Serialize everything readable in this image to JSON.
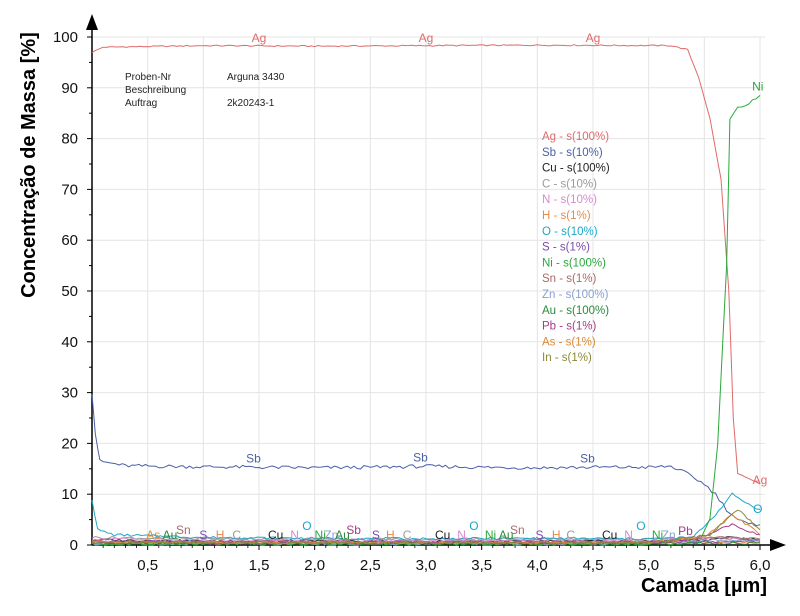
{
  "chart_data": {
    "type": "line",
    "xlabel": "Camada [µm]",
    "ylabel": "Concentração de Massa [%]",
    "xlim": [
      0,
      6.05
    ],
    "ylim": [
      0,
      100
    ],
    "x_ticks": [
      "0,5",
      "1,0",
      "1,5",
      "2,0",
      "2,5",
      "3,0",
      "3,5",
      "4,0",
      "4,5",
      "5,0",
      "5,5",
      "6,0"
    ],
    "y_ticks": [
      "0",
      "10",
      "20",
      "30",
      "40",
      "50",
      "60",
      "70",
      "80",
      "90",
      "100"
    ],
    "legend_position": "center-right",
    "info_box": [
      {
        "label": "Proben-Nr",
        "value": "Arguna 3430"
      },
      {
        "label": "Beschreibung",
        "value": ""
      },
      {
        "label": "Auftrag",
        "value": "2k20243-1"
      }
    ],
    "series": [
      {
        "name": "Ag - s(100%)",
        "color": "#e06a6a",
        "points": [
          [
            0,
            97
          ],
          [
            0.1,
            98
          ],
          [
            1.0,
            98.3
          ],
          [
            2.0,
            98.2
          ],
          [
            3.0,
            98.3
          ],
          [
            4.0,
            98.4
          ],
          [
            5.2,
            98.3
          ],
          [
            5.35,
            97.5
          ],
          [
            5.45,
            92
          ],
          [
            5.55,
            84
          ],
          [
            5.65,
            72
          ],
          [
            5.72,
            50
          ],
          [
            5.76,
            25
          ],
          [
            5.8,
            14
          ],
          [
            5.9,
            13
          ],
          [
            6.0,
            12
          ]
        ]
      },
      {
        "name": "Sb - s(10%)",
        "color": "#4a5fa8",
        "points": [
          [
            0,
            30
          ],
          [
            0.03,
            22
          ],
          [
            0.07,
            16.5
          ],
          [
            0.3,
            15.6
          ],
          [
            0.6,
            15.5
          ],
          [
            1.0,
            15.4
          ],
          [
            1.5,
            15.3
          ],
          [
            2.0,
            15.2
          ],
          [
            2.5,
            15.3
          ],
          [
            3.0,
            15.5
          ],
          [
            3.5,
            15.3
          ],
          [
            4.0,
            15.2
          ],
          [
            4.5,
            15.3
          ],
          [
            5.0,
            15.3
          ],
          [
            5.2,
            15.5
          ],
          [
            5.35,
            14
          ],
          [
            5.5,
            12
          ],
          [
            5.6,
            10
          ],
          [
            5.7,
            7
          ],
          [
            5.8,
            5
          ],
          [
            5.9,
            4
          ],
          [
            6.0,
            4
          ]
        ]
      },
      {
        "name": "Cu - s(100%)",
        "color": "#222222",
        "points": [
          [
            0,
            1
          ],
          [
            1.0,
            0.8
          ],
          [
            2.0,
            0.8
          ],
          [
            3.0,
            0.7
          ],
          [
            4.0,
            0.8
          ],
          [
            5.0,
            0.7
          ],
          [
            5.5,
            0.9
          ],
          [
            5.7,
            1.5
          ],
          [
            6.0,
            1
          ]
        ]
      },
      {
        "name": "C - s(10%)",
        "color": "#9a9a9a",
        "points": [
          [
            0,
            1.5
          ],
          [
            1.0,
            1.2
          ],
          [
            2.0,
            1.2
          ],
          [
            3.0,
            1.1
          ],
          [
            4.0,
            1.2
          ],
          [
            5.0,
            1.1
          ],
          [
            5.5,
            1.4
          ],
          [
            6.0,
            1.2
          ]
        ]
      },
      {
        "name": "N - s(10%)",
        "color": "#d98ad0",
        "points": [
          [
            0,
            1.2
          ],
          [
            1.0,
            0.9
          ],
          [
            2.0,
            1.0
          ],
          [
            3.0,
            0.9
          ],
          [
            4.0,
            1.0
          ],
          [
            5.0,
            0.9
          ],
          [
            5.6,
            1.5
          ],
          [
            6.0,
            1
          ]
        ]
      },
      {
        "name": "H - s(1%)",
        "color": "#e58a4a",
        "points": [
          [
            0,
            0.6
          ],
          [
            1.0,
            0.5
          ],
          [
            2.0,
            0.5
          ],
          [
            3.0,
            0.5
          ],
          [
            4.0,
            0.5
          ],
          [
            5.0,
            0.5
          ],
          [
            6.0,
            0.6
          ]
        ]
      },
      {
        "name": "O - s(10%)",
        "color": "#1aa8c8",
        "points": [
          [
            0,
            9
          ],
          [
            0.05,
            3
          ],
          [
            0.2,
            2
          ],
          [
            1.0,
            1.5
          ],
          [
            2.0,
            1.3
          ],
          [
            3.0,
            1.2
          ],
          [
            4.0,
            1.3
          ],
          [
            5.0,
            1.2
          ],
          [
            5.4,
            1.5
          ],
          [
            5.6,
            6
          ],
          [
            5.75,
            10
          ],
          [
            5.9,
            8
          ],
          [
            6.0,
            7
          ]
        ]
      },
      {
        "name": "S - s(1%)",
        "color": "#7a4aa8",
        "points": [
          [
            0,
            0.8
          ],
          [
            1.0,
            0.6
          ],
          [
            2.0,
            0.6
          ],
          [
            3.0,
            0.6
          ],
          [
            4.0,
            0.6
          ],
          [
            5.0,
            0.6
          ],
          [
            6.0,
            0.7
          ]
        ]
      },
      {
        "name": "Ni - s(100%)",
        "color": "#2aa83a",
        "points": [
          [
            0,
            0.1
          ],
          [
            1.0,
            0.1
          ],
          [
            2.0,
            0.1
          ],
          [
            3.0,
            0.1
          ],
          [
            4.0,
            0.1
          ],
          [
            5.0,
            0.1
          ],
          [
            5.45,
            0.5
          ],
          [
            5.55,
            5
          ],
          [
            5.62,
            20
          ],
          [
            5.7,
            55
          ],
          [
            5.73,
            84
          ],
          [
            5.8,
            86
          ],
          [
            5.9,
            87
          ],
          [
            6.0,
            88.5
          ]
        ]
      },
      {
        "name": "Sn  - s(1%)",
        "color": "#a86a6a",
        "points": [
          [
            0,
            0.7
          ],
          [
            1.0,
            0.6
          ],
          [
            2.0,
            0.6
          ],
          [
            3.0,
            0.6
          ],
          [
            4.0,
            0.6
          ],
          [
            5.0,
            0.6
          ],
          [
            5.7,
            1.5
          ],
          [
            6.0,
            1
          ]
        ]
      },
      {
        "name": "Zn - s(100%)",
        "color": "#8aa0d0",
        "points": [
          [
            0,
            0.3
          ],
          [
            1.0,
            0.3
          ],
          [
            2.0,
            0.3
          ],
          [
            3.0,
            0.3
          ],
          [
            4.0,
            0.3
          ],
          [
            5.0,
            0.3
          ],
          [
            5.6,
            1
          ],
          [
            6.0,
            0.8
          ]
        ]
      },
      {
        "name": "Au - s(100%)",
        "color": "#2a8a3a",
        "points": [
          [
            0,
            0.4
          ],
          [
            1.0,
            0.3
          ],
          [
            2.0,
            0.3
          ],
          [
            3.0,
            0.3
          ],
          [
            4.0,
            0.3
          ],
          [
            5.0,
            0.3
          ],
          [
            6.0,
            0.4
          ]
        ]
      },
      {
        "name": "Pb - s(1%)",
        "color": "#a83a8a",
        "points": [
          [
            0,
            0.5
          ],
          [
            1.0,
            0.4
          ],
          [
            2.0,
            0.4
          ],
          [
            3.0,
            0.4
          ],
          [
            4.0,
            0.4
          ],
          [
            5.0,
            0.4
          ],
          [
            5.4,
            1
          ],
          [
            5.75,
            4
          ],
          [
            6.0,
            2
          ]
        ]
      },
      {
        "name": "As - s(1%)",
        "color": "#d88a3a",
        "points": [
          [
            0,
            0.6
          ],
          [
            1.0,
            0.5
          ],
          [
            2.0,
            0.5
          ],
          [
            3.0,
            0.5
          ],
          [
            4.0,
            0.5
          ],
          [
            5.0,
            0.5
          ],
          [
            5.5,
            1.5
          ],
          [
            5.75,
            6
          ],
          [
            5.95,
            3
          ],
          [
            6.0,
            2
          ]
        ]
      },
      {
        "name": "In - s(1%)",
        "color": "#8a8a3a",
        "points": [
          [
            0,
            0.5
          ],
          [
            1.0,
            0.4
          ],
          [
            2.0,
            0.4
          ],
          [
            3.0,
            0.4
          ],
          [
            4.0,
            0.4
          ],
          [
            5.0,
            0.4
          ],
          [
            5.55,
            2
          ],
          [
            5.8,
            7
          ],
          [
            6.0,
            3
          ]
        ]
      }
    ],
    "annotations": [
      {
        "text": "Ag",
        "x": 1.5,
        "y": 99,
        "color": "#e06a6a"
      },
      {
        "text": "Ag",
        "x": 3.0,
        "y": 99,
        "color": "#e06a6a"
      },
      {
        "text": "Ag",
        "x": 4.5,
        "y": 99,
        "color": "#e06a6a"
      },
      {
        "text": "Ag",
        "x": 6.0,
        "y": 12,
        "color": "#e06a6a"
      },
      {
        "text": "Ni",
        "x": 5.98,
        "y": 89.5,
        "color": "#2aa83a"
      },
      {
        "text": "Sb",
        "x": 1.45,
        "y": 16.2,
        "color": "#4a5fa8"
      },
      {
        "text": "Sb",
        "x": 2.95,
        "y": 16.4,
        "color": "#4a5fa8"
      },
      {
        "text": "Sb",
        "x": 4.45,
        "y": 16.2,
        "color": "#4a5fa8"
      },
      {
        "text": "As",
        "x": 0.55,
        "y": 1.2,
        "color": "#d88a3a"
      },
      {
        "text": "Au",
        "x": 0.7,
        "y": 1.2,
        "color": "#2a8a3a"
      },
      {
        "text": "Sn",
        "x": 0.82,
        "y": 2.2,
        "color": "#a86a6a"
      },
      {
        "text": "S",
        "x": 1.0,
        "y": 1.2,
        "color": "#7a4aa8"
      },
      {
        "text": "H",
        "x": 1.15,
        "y": 1.2,
        "color": "#e58a4a"
      },
      {
        "text": "C",
        "x": 1.3,
        "y": 1.2,
        "color": "#9a9a9a"
      },
      {
        "text": "Cu",
        "x": 1.65,
        "y": 1.2,
        "color": "#222222"
      },
      {
        "text": "N",
        "x": 1.82,
        "y": 1.2,
        "color": "#d98ad0"
      },
      {
        "text": "O",
        "x": 1.93,
        "y": 3.0,
        "color": "#1aa8c8"
      },
      {
        "text": "Ni",
        "x": 2.05,
        "y": 1.2,
        "color": "#2aa83a"
      },
      {
        "text": "Zn",
        "x": 2.15,
        "y": 1.2,
        "color": "#8aa0d0"
      },
      {
        "text": "Au",
        "x": 2.25,
        "y": 1.2,
        "color": "#2a8a3a"
      },
      {
        "text": "Sb",
        "x": 2.35,
        "y": 2.2,
        "color": "#a83a8a"
      },
      {
        "text": "S",
        "x": 2.55,
        "y": 1.2,
        "color": "#7a4aa8"
      },
      {
        "text": "H",
        "x": 2.68,
        "y": 1.2,
        "color": "#e58a4a"
      },
      {
        "text": "C",
        "x": 2.83,
        "y": 1.2,
        "color": "#9a9a9a"
      },
      {
        "text": "Cu",
        "x": 3.15,
        "y": 1.2,
        "color": "#222222"
      },
      {
        "text": "N",
        "x": 3.32,
        "y": 1.2,
        "color": "#d98ad0"
      },
      {
        "text": "O",
        "x": 3.43,
        "y": 3.0,
        "color": "#1aa8c8"
      },
      {
        "text": "Ni",
        "x": 3.58,
        "y": 1.2,
        "color": "#2aa83a"
      },
      {
        "text": "Au",
        "x": 3.72,
        "y": 1.2,
        "color": "#2a8a3a"
      },
      {
        "text": "Sn",
        "x": 3.82,
        "y": 2.2,
        "color": "#a86a6a"
      },
      {
        "text": "S",
        "x": 4.02,
        "y": 1.2,
        "color": "#7a4aa8"
      },
      {
        "text": "H",
        "x": 4.17,
        "y": 1.2,
        "color": "#e58a4a"
      },
      {
        "text": "C",
        "x": 4.3,
        "y": 1.2,
        "color": "#9a9a9a"
      },
      {
        "text": "Cu",
        "x": 4.65,
        "y": 1.2,
        "color": "#222222"
      },
      {
        "text": "N",
        "x": 4.82,
        "y": 1.2,
        "color": "#d98ad0"
      },
      {
        "text": "O",
        "x": 4.93,
        "y": 3.0,
        "color": "#1aa8c8"
      },
      {
        "text": "Ni",
        "x": 5.08,
        "y": 1.2,
        "color": "#2aa83a"
      },
      {
        "text": "Zn",
        "x": 5.18,
        "y": 1.2,
        "color": "#8aa0d0"
      },
      {
        "text": "Pb",
        "x": 5.33,
        "y": 2.0,
        "color": "#a83a8a"
      },
      {
        "text": "O",
        "x": 5.98,
        "y": 6.3,
        "color": "#1aa8c8"
      }
    ]
  }
}
